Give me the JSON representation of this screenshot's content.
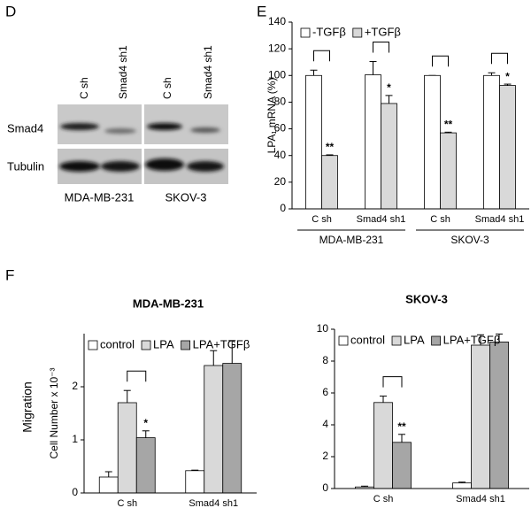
{
  "panel_labels": [
    "D",
    "E",
    "F"
  ],
  "blot": {
    "lanes": [
      "C sh",
      "Smad4 sh1",
      "C sh",
      "Smad4 sh1"
    ],
    "rows": [
      "Smad4",
      "Tubulin"
    ],
    "cell_lines": [
      "MDA-MB-231",
      "SKOV-3"
    ]
  },
  "panel_f_ylabel": "Migration",
  "chart_data": [
    {
      "type": "bar",
      "ylabel": "LPA₁ mRNA (%)",
      "categories": [
        "C sh",
        "Smad4 sh1",
        "C sh",
        "Smad4 sh1"
      ],
      "groups": [
        "MDA-MB-231",
        "SKOV-3"
      ],
      "series": [
        {
          "name": "-TGFβ",
          "color": "#ffffff",
          "values": [
            100,
            100.5,
            100,
            100
          ],
          "errors": [
            4,
            10,
            0,
            2
          ]
        },
        {
          "name": "+TGFβ",
          "color": "#d9d9d9",
          "values": [
            40,
            79,
            57,
            92.5
          ],
          "errors": [
            0.5,
            6,
            0.5,
            1
          ],
          "annotations": [
            "**",
            "*",
            "**",
            "*"
          ]
        }
      ],
      "ylim": [
        0,
        140
      ],
      "yticks": [
        0,
        20,
        40,
        60,
        80,
        100,
        120,
        140
      ],
      "grid": false,
      "legend": "top-left"
    },
    {
      "type": "bar",
      "title": "MDA-MB-231",
      "ylabel": "Cell Number x 10⁻³",
      "categories": [
        "C sh",
        "Smad4 sh1"
      ],
      "series": [
        {
          "name": "control",
          "color": "#ffffff",
          "values": [
            0.3,
            0.42
          ],
          "errors": [
            0.1,
            0.01
          ]
        },
        {
          "name": "LPA",
          "color": "#d9d9d9",
          "values": [
            1.7,
            2.4
          ],
          "errors": [
            0.23,
            0.28
          ]
        },
        {
          "name": "LPA+TGFβ",
          "color": "#a6a6a6",
          "values": [
            1.04,
            2.44
          ],
          "errors": [
            0.13,
            0.43
          ],
          "annotations": [
            "*",
            null
          ]
        }
      ],
      "ylim": [
        0,
        3
      ],
      "yticks": [
        0,
        1,
        2
      ],
      "grid": false,
      "legend": "top-left"
    },
    {
      "type": "bar",
      "title": "SKOV-3",
      "categories": [
        "C sh",
        "Smad4 sh1"
      ],
      "series": [
        {
          "name": "control",
          "color": "#ffffff",
          "values": [
            0.1,
            0.35
          ],
          "errors": [
            0.05,
            0.05
          ]
        },
        {
          "name": "LPA",
          "color": "#d9d9d9",
          "values": [
            5.4,
            9.0
          ],
          "errors": [
            0.4,
            0.65
          ]
        },
        {
          "name": "LPA+TGFβ",
          "color": "#a6a6a6",
          "values": [
            2.9,
            9.2
          ],
          "errors": [
            0.5,
            0.5
          ],
          "annotations": [
            "**",
            null
          ]
        }
      ],
      "ylim": [
        0,
        10
      ],
      "yticks": [
        0,
        2,
        4,
        6,
        8,
        10
      ],
      "grid": false,
      "legend": "top-left"
    }
  ]
}
